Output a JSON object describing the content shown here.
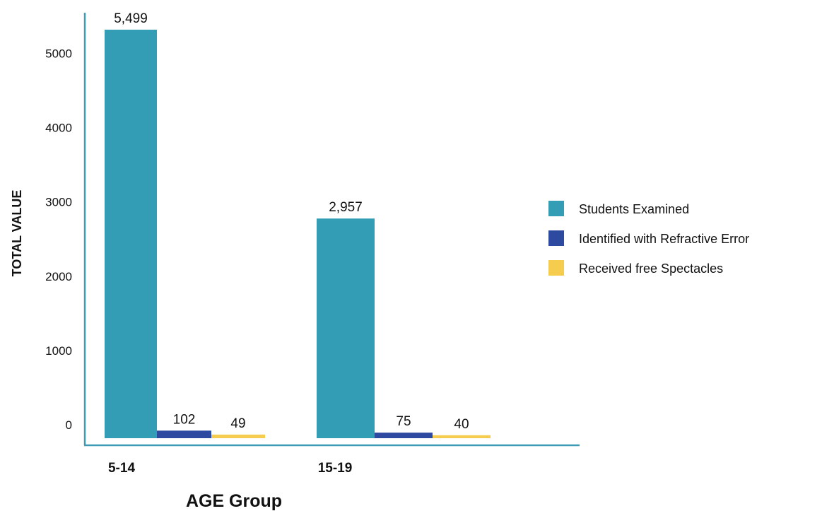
{
  "chart_data": {
    "type": "bar",
    "categories": [
      "5-14",
      "15-19"
    ],
    "series": [
      {
        "name": "Students Examined",
        "color": "#339db6",
        "values": [
          5499,
          2957
        ],
        "labels": [
          "5,499",
          "2,957"
        ]
      },
      {
        "name": "Identified with Refractive Error",
        "color": "#2e4aa0",
        "values": [
          102,
          75
        ],
        "labels": [
          "102",
          "75"
        ]
      },
      {
        "name": "Received free Spectacles",
        "color": "#f5cc4e",
        "values": [
          49,
          40
        ],
        "labels": [
          "49",
          "40"
        ]
      }
    ],
    "xlabel": "AGE Group",
    "ylabel": "TOTAL VALUE",
    "yticks": [
      0,
      1000,
      2000,
      3000,
      4000,
      5000
    ],
    "ylim": [
      0,
      5499
    ],
    "axis_color": "#3d9bb3",
    "grid": false,
    "legend_position": "right"
  }
}
